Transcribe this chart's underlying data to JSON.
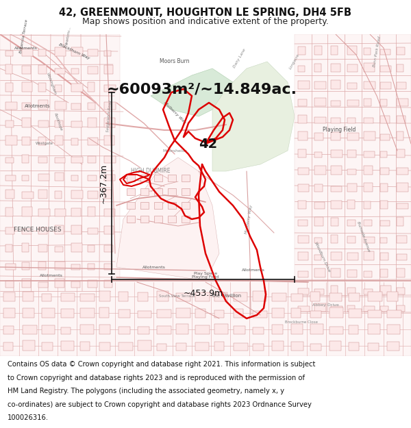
{
  "title_line1": "42, GREENMOUNT, HOUGHTON LE SPRING, DH4 5FB",
  "title_line2": "Map shows position and indicative extent of the property.",
  "area_text": "~60093m²/~14.849ac.",
  "dim1_text": "~367.2m",
  "dim2_text": "~453.9m",
  "label_42": "42",
  "footer_lines": [
    "Contains OS data © Crown copyright and database right 2021. This information is subject",
    "to Crown copyright and database rights 2023 and is reproduced with the permission of",
    "HM Land Registry. The polygons (including the associated geometry, namely x, y",
    "co-ordinates) are subject to Crown copyright and database rights 2023 Ordnance Survey",
    "100026316."
  ],
  "map_bg": "#ffffff",
  "road_color": "#e8b8b8",
  "road_edge": "#cc8888",
  "green_color": "#d8ead8",
  "outline_color": "#dd0000",
  "dim_color": "#111111",
  "text_color": "#555555",
  "title_fontsize": 10.5,
  "subtitle_fontsize": 9,
  "footer_fontsize": 7.2,
  "area_fontsize": 16,
  "dim_fontsize": 9,
  "label_fontsize": 14,
  "map_label_fontsize": 5.5
}
